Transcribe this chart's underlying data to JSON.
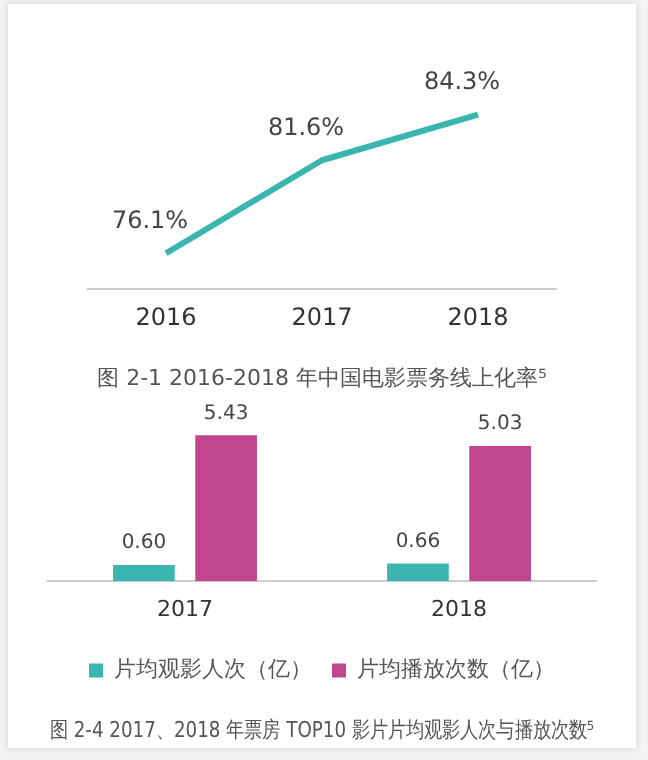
{
  "chart_data": [
    {
      "type": "line",
      "title": "图 2-1 2016-2018 年中国电影票务线上化率⁵",
      "categories": [
        "2016",
        "2017",
        "2018"
      ],
      "series": [
        {
          "color": "#3bb5b0",
          "values": [
            76.1,
            81.6,
            84.3
          ],
          "value_labels": [
            "76.1%",
            "81.6%",
            "84.3%"
          ]
        }
      ],
      "grid": false,
      "tick_labels": "x",
      "legend": false,
      "marker": "none",
      "line_style": "solid"
    },
    {
      "type": "bar",
      "title": "图 2-4 2017、2018 年票房 TOP10 影片片均观影人次与播放次数⁵",
      "categories": [
        "2017",
        "2018"
      ],
      "series": [
        {
          "name": "片均观影人次（亿）",
          "color": "#3bb5b0",
          "values": [
            0.6,
            0.66
          ],
          "value_labels": [
            "0.60",
            "0.66"
          ]
        },
        {
          "name": "片均播放次数（亿）",
          "color": "#c2468f",
          "values": [
            5.43,
            5.03
          ],
          "value_labels": [
            "5.43",
            "5.03"
          ]
        }
      ],
      "grid": false,
      "tick_labels": "x",
      "legend": "bottom"
    }
  ]
}
